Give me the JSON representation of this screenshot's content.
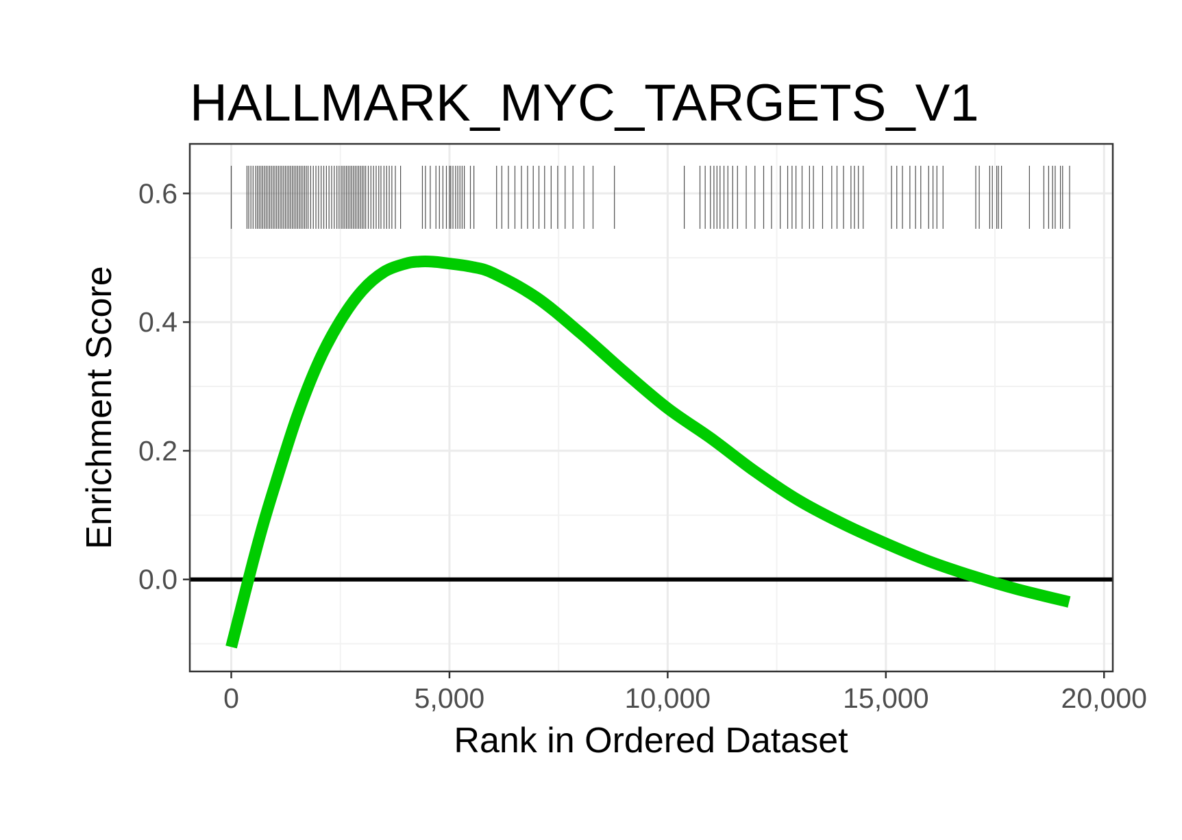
{
  "chart_data": {
    "type": "line",
    "title": "HALLMARK_MYC_TARGETS_V1",
    "xlabel": "Rank in Ordered Dataset",
    "ylabel": "Enrichment Score",
    "xlim": [
      -950,
      20200
    ],
    "ylim": [
      -0.143,
      0.677
    ],
    "x_ticks": [
      0,
      5000,
      10000,
      15000,
      20000
    ],
    "x_tick_labels": [
      "0",
      "5,000",
      "10,000",
      "15,000",
      "20,000"
    ],
    "y_ticks": [
      0.0,
      0.2,
      0.4,
      0.6
    ],
    "y_tick_labels": [
      "0.0",
      "0.2",
      "0.4",
      "0.6"
    ],
    "x_minor_ticks": [
      2500,
      7500,
      12500,
      17500
    ],
    "y_minor_ticks": [
      -0.1,
      0.1,
      0.3,
      0.5
    ],
    "grid": true,
    "theme": "bw",
    "hline": {
      "y": 0,
      "color": "#000000"
    },
    "series": [
      {
        "color": "#00cc00",
        "x": [
          0,
          250,
          500,
          750,
          1000,
          1500,
          2000,
          2500,
          3000,
          3500,
          4000,
          4300,
          4600,
          5000,
          5500,
          6000,
          7000,
          8000,
          9000,
          10000,
          11000,
          12000,
          13000,
          14000,
          15000,
          16000,
          17000,
          18000,
          19200
        ],
        "y": [
          -0.105,
          -0.038,
          0.028,
          0.09,
          0.146,
          0.252,
          0.338,
          0.402,
          0.449,
          0.478,
          0.491,
          0.494,
          0.494,
          0.491,
          0.486,
          0.476,
          0.438,
          0.383,
          0.323,
          0.266,
          0.219,
          0.168,
          0.123,
          0.087,
          0.056,
          0.028,
          0.005,
          -0.015,
          -0.035
        ]
      }
    ],
    "rug": {
      "color": "#4d4d4d",
      "y_range": [
        0.545,
        0.643
      ],
      "positions": [
        0,
        360,
        400,
        450,
        500,
        560,
        600,
        640,
        680,
        720,
        760,
        800,
        840,
        880,
        920,
        960,
        1000,
        1040,
        1080,
        1120,
        1160,
        1200,
        1240,
        1280,
        1320,
        1360,
        1400,
        1440,
        1480,
        1520,
        1560,
        1600,
        1640,
        1680,
        1720,
        1760,
        1820,
        1880,
        1940,
        2000,
        2060,
        2120,
        2180,
        2240,
        2300,
        2360,
        2420,
        2470,
        2520,
        2560,
        2600,
        2640,
        2680,
        2720,
        2760,
        2800,
        2840,
        2880,
        2920,
        2960,
        3000,
        3040,
        3080,
        3140,
        3200,
        3260,
        3320,
        3380,
        3430,
        3500,
        3560,
        3620,
        3680,
        3760,
        3880,
        4380,
        4450,
        4560,
        4690,
        4770,
        4850,
        4930,
        5000,
        5030,
        5080,
        5140,
        5190,
        5240,
        5290,
        5340,
        5480,
        5560,
        6080,
        6200,
        6350,
        6500,
        6650,
        6790,
        6920,
        7050,
        7180,
        7330,
        7480,
        7650,
        7830,
        8080,
        8290,
        8780,
        10380,
        10740,
        10860,
        10980,
        11060,
        11130,
        11200,
        11290,
        11380,
        11490,
        11600,
        11800,
        12000,
        12200,
        12380,
        12580,
        12750,
        12850,
        12940,
        13080,
        13250,
        13340,
        13550,
        13760,
        13880,
        14030,
        14200,
        14280,
        14370,
        14480,
        15130,
        15250,
        15380,
        15550,
        15680,
        15800,
        15980,
        16080,
        16170,
        16310,
        17060,
        17140,
        17380,
        17440,
        17540,
        17580,
        17650,
        18290,
        18620,
        18730,
        18820,
        18880,
        19000,
        19050,
        19210
      ]
    }
  }
}
